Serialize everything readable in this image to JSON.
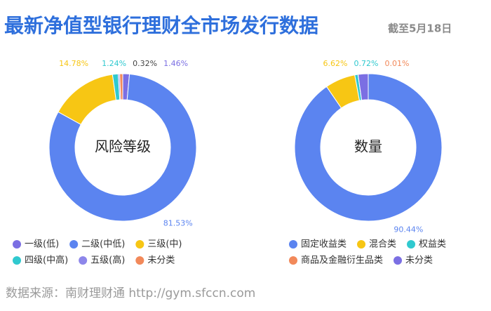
{
  "header": {
    "title": "最新净值型银行理财全市场发行数据",
    "subtitle": "截至5月18日"
  },
  "footer": {
    "source": "数据来源：南财理财通 http://gym.sfccn.com"
  },
  "chart_data": [
    {
      "type": "donut",
      "title": "风险等级",
      "categories": [
        "一级(低)",
        "二级(中低)",
        "三级(中)",
        "四级(中高)",
        "五级(高)",
        "未分类"
      ],
      "values": [
        1.46,
        81.53,
        14.78,
        1.24,
        0.32,
        0.67
      ],
      "value_labels": [
        "1.46%",
        "81.53%",
        "14.78%",
        "1.24%",
        "0.32%",
        null
      ],
      "colors": [
        "#7b6fe3",
        "#5b84f0",
        "#f7c614",
        "#30c9cf",
        "#8d86ea",
        "#f2895a"
      ]
    },
    {
      "type": "donut",
      "title": "数量",
      "categories": [
        "固定收益类",
        "混合类",
        "权益类",
        "商品及金融衍生品类",
        "未分类"
      ],
      "values": [
        90.44,
        6.62,
        0.72,
        0.01,
        2.21
      ],
      "value_labels": [
        "90.44%",
        "6.62%",
        "0.72%",
        "0.01%",
        null
      ],
      "colors": [
        "#5b84f0",
        "#f7c614",
        "#30c9cf",
        "#f2895a",
        "#7b6fe3"
      ]
    }
  ]
}
